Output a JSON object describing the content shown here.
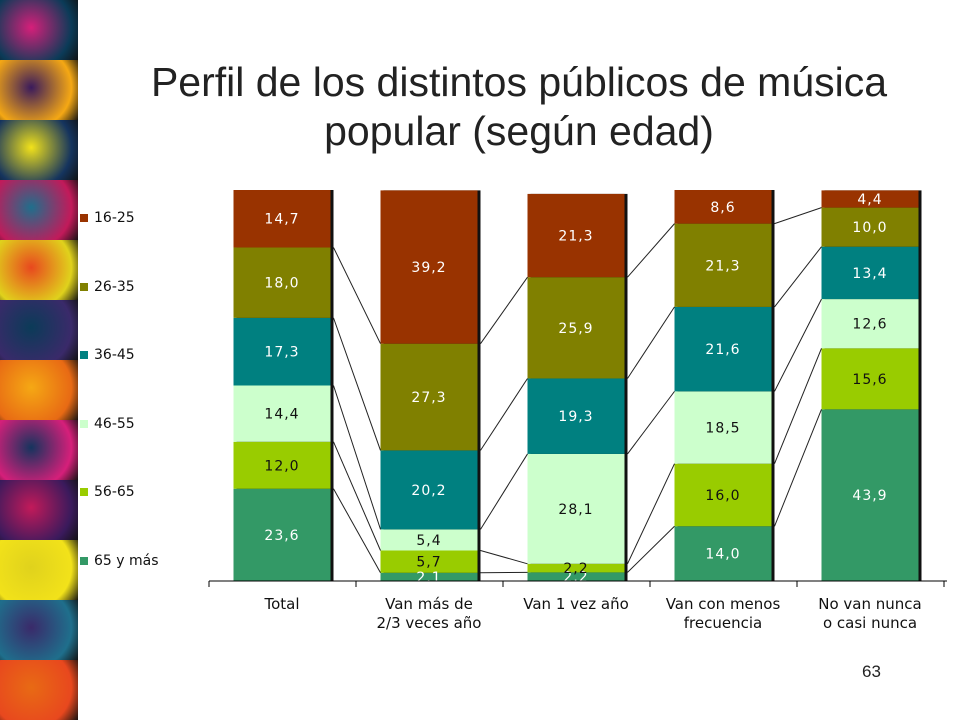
{
  "slide": {
    "title": "Perfil de los distintos públicos de música popular (según edad)",
    "page_number": "63"
  },
  "decoration": {
    "tile_colors": [
      "#d61f7a",
      "#3a1a5c",
      "#f2e21a",
      "#1f6f8c",
      "#e8481e",
      "#0b3b58",
      "#f5a814",
      "#15345e",
      "#c21a5a",
      "#e0d21c",
      "#3a2a6a",
      "#e86a14"
    ]
  },
  "chart_data": {
    "type": "bar",
    "stacked": true,
    "categories": [
      "Total",
      "Van más de 2/3 veces año",
      "Van 1 vez año",
      "Van con menos frecuencia",
      "No van nunca o casi nunca"
    ],
    "series": [
      {
        "name": "65 y más",
        "color": "#339966",
        "values": [
          23.6,
          2.1,
          2.2,
          14.0,
          43.9
        ],
        "labels": [
          "23,6",
          "2,1",
          "2,2",
          "14,0",
          "43,9"
        ]
      },
      {
        "name": "56-65",
        "color": "#99cc00",
        "values": [
          12.0,
          5.7,
          2.2,
          16.0,
          15.6
        ],
        "labels": [
          "12,0",
          "5,7",
          "2,2",
          "16,0",
          "15,6"
        ]
      },
      {
        "name": "46-55",
        "color": "#ccffcc",
        "values": [
          14.4,
          5.4,
          28.1,
          18.5,
          12.6
        ],
        "labels": [
          "14,4",
          "5,4",
          "28,1",
          "18,5",
          "12,6"
        ]
      },
      {
        "name": "36-45",
        "color": "#008080",
        "values": [
          17.3,
          20.2,
          19.3,
          21.6,
          13.4
        ],
        "labels": [
          "17,3",
          "20,2",
          "19,3",
          "21,6",
          "13,4"
        ]
      },
      {
        "name": "26-35",
        "color": "#808000",
        "values": [
          18.0,
          27.3,
          25.9,
          21.3,
          10.0
        ],
        "labels": [
          "18,0",
          "27,3",
          "25,9",
          "21,3",
          "10,0"
        ]
      },
      {
        "name": "16-25",
        "color": "#993300",
        "values": [
          14.7,
          39.2,
          21.3,
          8.6,
          4.4
        ],
        "labels": [
          "14,7",
          "39,2",
          "21,3",
          "8,6",
          "4,4"
        ]
      }
    ],
    "ylim": [
      0,
      100
    ],
    "legend_position": "left",
    "series_lines": true
  }
}
